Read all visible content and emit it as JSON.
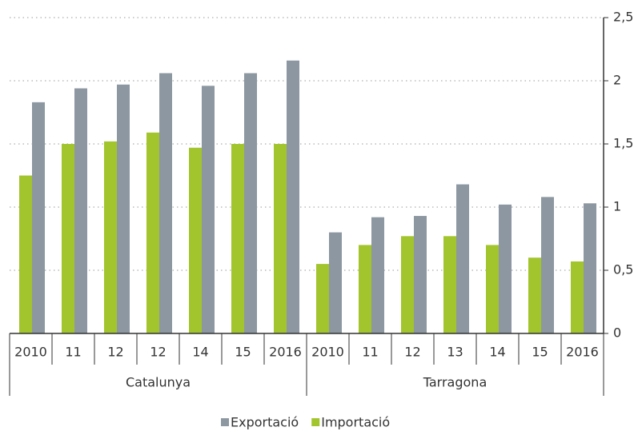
{
  "chart_data": {
    "type": "bar",
    "categories": [
      "2010",
      "11",
      "12",
      "12",
      "14",
      "15",
      "2016",
      "2010",
      "11",
      "12",
      "13",
      "14",
      "15",
      "2016"
    ],
    "groups": [
      "Catalunya",
      "Tarragona"
    ],
    "series": [
      {
        "name": "Importació",
        "color": "#a2c42c",
        "values": [
          1.25,
          1.5,
          1.52,
          1.59,
          1.47,
          1.5,
          1.5,
          0.55,
          0.7,
          0.77,
          0.77,
          0.7,
          0.6,
          0.57
        ]
      },
      {
        "name": "Exportació",
        "color": "#8d97a1",
        "values": [
          1.83,
          1.94,
          1.97,
          2.06,
          1.96,
          2.06,
          2.16,
          0.8,
          0.92,
          0.93,
          1.18,
          1.02,
          1.08,
          1.03
        ]
      }
    ],
    "ylim": [
      0,
      2.5
    ],
    "yticks": [
      0,
      {
        "value": 0.5,
        "label": "0,5"
      },
      1,
      {
        "value": 1.5,
        "label": "1,5"
      },
      2,
      {
        "value": 2.5,
        "label": "2,5"
      }
    ],
    "grid": true,
    "legend": "bottom"
  }
}
